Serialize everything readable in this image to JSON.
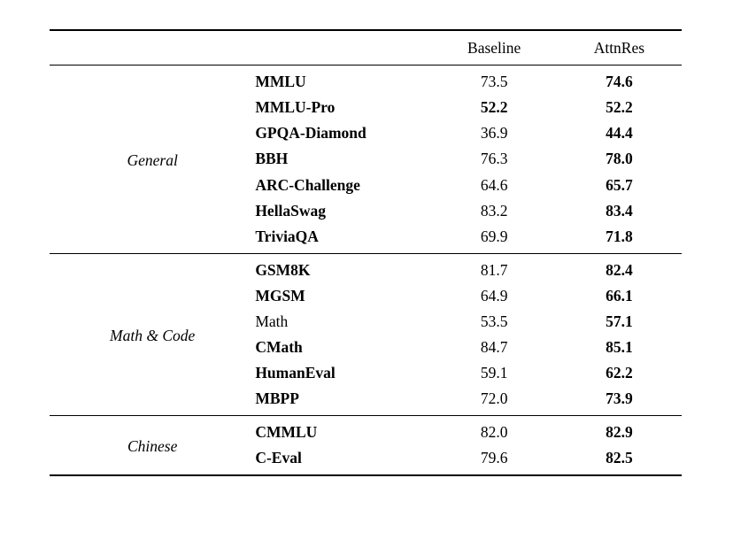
{
  "table": {
    "columns": [
      "",
      "Baseline",
      "AttnRes"
    ],
    "sections": [
      {
        "category": "General",
        "rows": [
          {
            "name": "MMLU",
            "baseline": "73.5",
            "attnres": "74.6"
          },
          {
            "name": "MMLU-Pro",
            "baseline": "52.2",
            "attnres": "52.2"
          },
          {
            "name": "GPQA-Diamond",
            "baseline": "36.9",
            "attnres": "44.4"
          },
          {
            "name": "BBH",
            "baseline": "76.3",
            "attnres": "78.0"
          },
          {
            "name": "ARC-Challenge",
            "baseline": "64.6",
            "attnres": "65.7"
          },
          {
            "name": "HellaSwag",
            "baseline": "83.2",
            "attnres": "83.4"
          },
          {
            "name": "TriviaQA",
            "baseline": "69.9",
            "attnres": "71.8"
          }
        ]
      },
      {
        "category": "Math & Code",
        "rows": [
          {
            "name": "GSM8K",
            "baseline": "81.7",
            "attnres": "82.4"
          },
          {
            "name": "MGSM",
            "baseline": "64.9",
            "attnres": "66.1"
          },
          {
            "name": "Math",
            "baseline": "53.5",
            "attnres": "57.1"
          },
          {
            "name": "CMath",
            "baseline": "84.7",
            "attnres": "85.1"
          },
          {
            "name": "HumanEval",
            "baseline": "59.1",
            "attnres": "62.2"
          },
          {
            "name": "MBPP",
            "baseline": "72.0",
            "attnres": "73.9"
          }
        ]
      },
      {
        "category": "Chinese",
        "rows": [
          {
            "name": "CMMLU",
            "baseline": "82.0",
            "attnres": "82.9"
          },
          {
            "name": "C-Eval",
            "baseline": "79.6",
            "attnres": "82.5"
          }
        ]
      }
    ]
  }
}
